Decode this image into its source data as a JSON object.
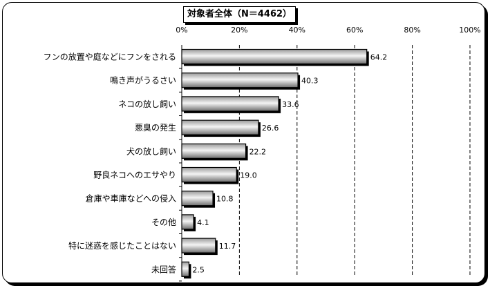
{
  "chart_data": {
    "type": "bar",
    "orientation": "horizontal",
    "title": "対象者全体（N＝4462）",
    "categories": [
      "フンの放置や庭などにフンをされる",
      "鳴き声がうるさい",
      "ネコの放し飼い",
      "悪臭の発生",
      "犬の放し飼い",
      "野良ネコへのエサやり",
      "倉庫や車庫などへの侵入",
      "その他",
      "特に迷惑を感じたことはない",
      "未回答"
    ],
    "values": [
      64.2,
      40.3,
      33.6,
      26.6,
      22.2,
      19.0,
      10.8,
      4.1,
      11.7,
      2.5
    ],
    "value_labels": [
      "64.2",
      "40.3",
      "33.6",
      "26.6",
      "22.2",
      "19.0",
      "10.8",
      "4.1",
      "11.7",
      "2.5"
    ],
    "xlim": [
      0,
      100
    ],
    "x_ticks": [
      0,
      20,
      40,
      60,
      80,
      100
    ],
    "x_tick_labels": [
      "0%",
      "20%",
      "40%",
      "60%",
      "80%",
      "100%"
    ],
    "grid": "vertical-dashed",
    "bar_fill": "gradient-gray"
  }
}
